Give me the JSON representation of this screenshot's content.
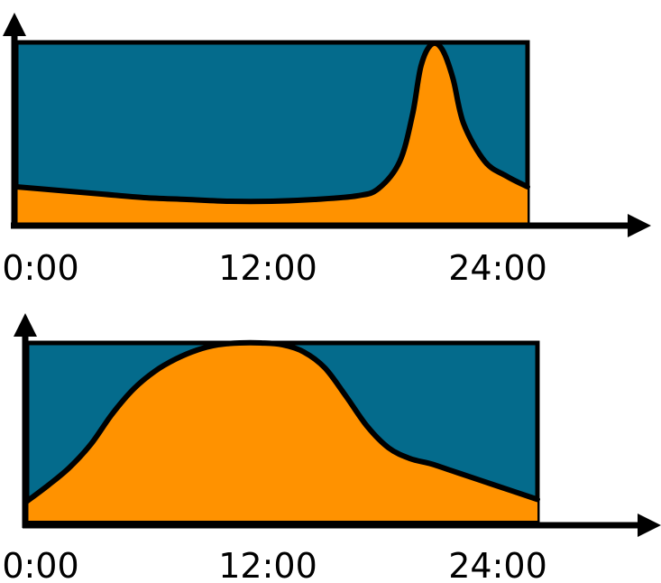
{
  "colors": {
    "background_band": "#046B8C",
    "area_fill": "#FF9200",
    "outline": "#000000"
  },
  "chart_data": [
    {
      "type": "area",
      "title": "",
      "xlabel": "",
      "ylabel": "",
      "x_ticks": [
        "0:00",
        "12:00",
        "24:00"
      ],
      "xlim": [
        0,
        24
      ],
      "ylim": [
        0,
        1
      ],
      "grid": false,
      "legend": "none",
      "series": [
        {
          "x": [
            0,
            2,
            4,
            6,
            8,
            10,
            12,
            14,
            16,
            17,
            18,
            18.6,
            19,
            19.5,
            20,
            20.5,
            21,
            22,
            23,
            24
          ],
          "y": [
            0.2,
            0.18,
            0.16,
            0.14,
            0.13,
            0.12,
            0.12,
            0.13,
            0.15,
            0.19,
            0.34,
            0.6,
            0.87,
            0.99,
            0.96,
            0.8,
            0.55,
            0.34,
            0.26,
            0.2
          ]
        }
      ]
    },
    {
      "type": "area",
      "title": "",
      "xlabel": "",
      "ylabel": "",
      "x_ticks": [
        "0:00",
        "12:00",
        "24:00"
      ],
      "xlim": [
        0,
        24
      ],
      "ylim": [
        0,
        1
      ],
      "grid": false,
      "legend": "none",
      "series": [
        {
          "x": [
            0,
            1,
            2,
            3,
            4,
            5,
            6,
            7,
            8,
            9,
            10,
            11,
            12,
            13,
            14,
            15,
            16,
            17,
            18,
            19,
            20,
            22,
            24
          ],
          "y": [
            0.11,
            0.2,
            0.3,
            0.43,
            0.6,
            0.74,
            0.84,
            0.91,
            0.96,
            0.99,
            1.0,
            1.0,
            0.99,
            0.95,
            0.86,
            0.7,
            0.53,
            0.41,
            0.35,
            0.32,
            0.28,
            0.2,
            0.12
          ]
        }
      ]
    }
  ]
}
